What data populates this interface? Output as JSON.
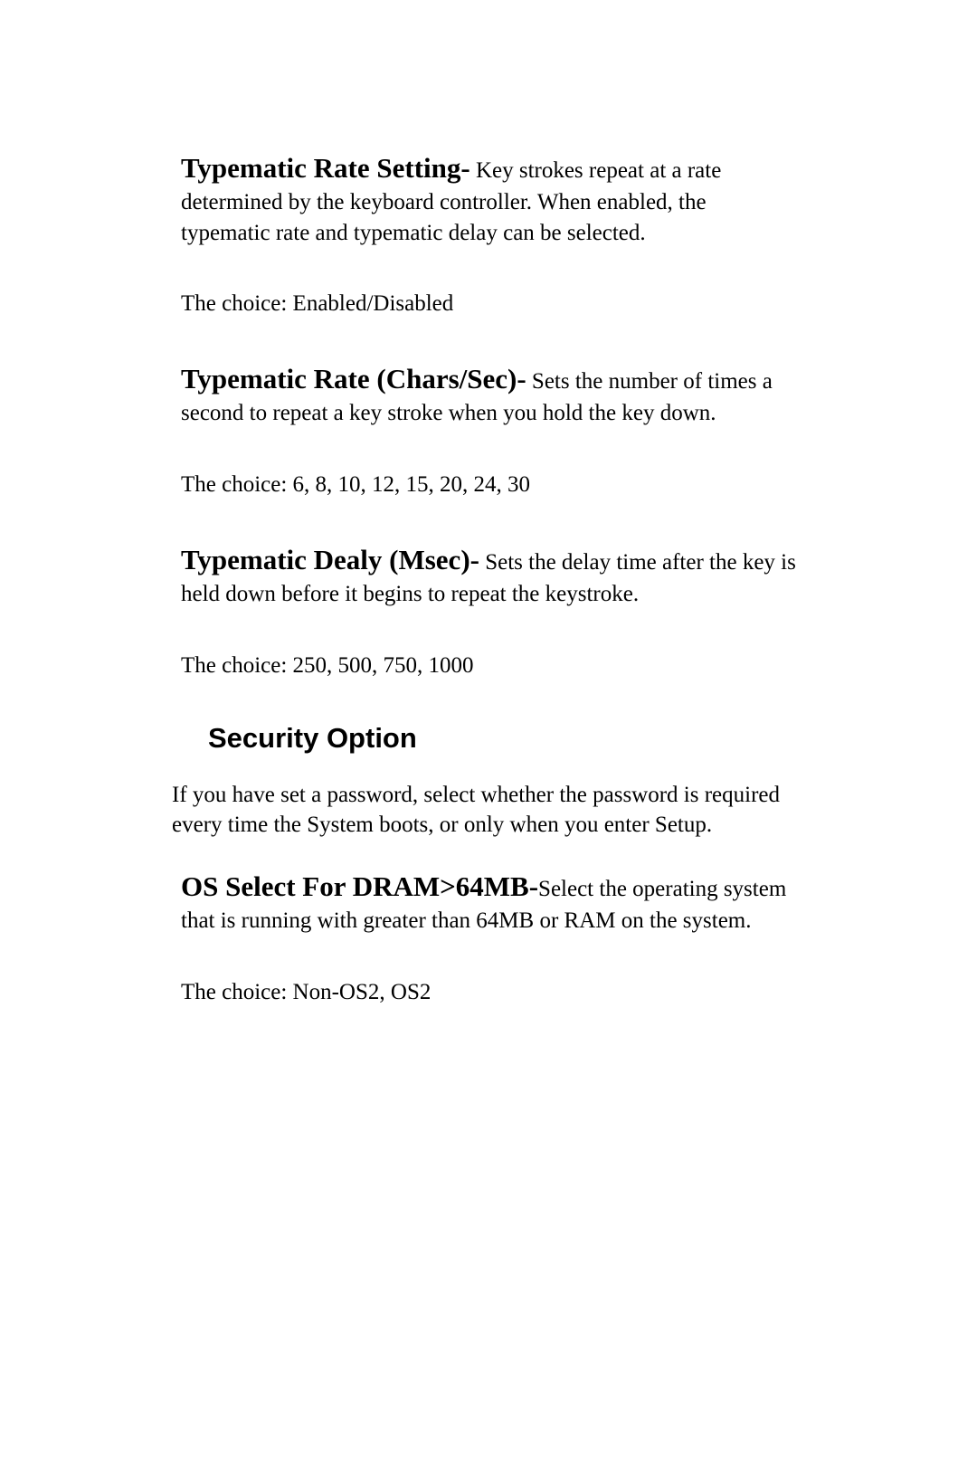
{
  "sections": {
    "typematicRateSetting": {
      "heading": "Typematic Rate Setting-",
      "body": "  Key strokes repeat at a rate determined by the keyboard controller.  When enabled, the typematic rate and typematic delay can be selected.",
      "choice": "The choice:  Enabled/Disabled"
    },
    "typematicRateChars": {
      "heading": "Typematic Rate (Chars/Sec)-",
      "body": "   Sets the number of times a second to repeat a key stroke when you hold the key   down.",
      "choice": "The choice:  6, 8, 10, 12, 15, 20, 24, 30"
    },
    "typematicDelay": {
      "heading": "Typematic Dealy (Msec)-",
      "body": "   Sets the delay time after the key is held down before it begins to repeat the keystroke.",
      "choice": "The choice:  250, 500, 750, 1000"
    },
    "securityOption": {
      "heading": "Security Option",
      "body": " If you have set a password, select whether the password is required every time the System boots, or only when    you enter Setup."
    },
    "osSelect": {
      "heading": "OS  Select  For  DRAM>64MB-",
      "body": "Select the operating system that is running with greater than 64MB or RAM on the system.",
      "choice": "The choice:  Non-OS2, OS2"
    }
  }
}
